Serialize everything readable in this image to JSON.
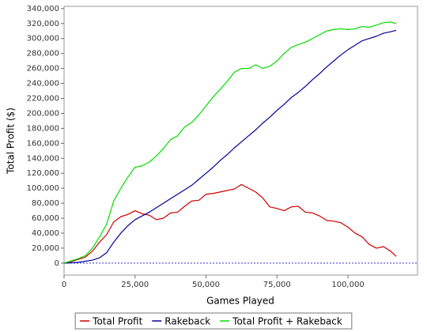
{
  "chart_data": {
    "type": "line",
    "x_label": "Games Played",
    "y_label": "Total Profit ($)",
    "x": [
      0,
      2500,
      5000,
      7500,
      10000,
      12500,
      15000,
      17500,
      20000,
      22500,
      25000,
      27500,
      30000,
      32500,
      35000,
      37500,
      40000,
      42500,
      45000,
      47500,
      50000,
      52500,
      55000,
      57500,
      60000,
      62500,
      65000,
      67500,
      70000,
      72500,
      75000,
      77500,
      80000,
      82500,
      85000,
      87500,
      90000,
      92500,
      95000,
      97500,
      100000,
      102500,
      105000,
      107500,
      110000,
      112500,
      115000,
      117000
    ],
    "series": [
      {
        "name": "Total Profit",
        "color": "#cc0000",
        "values": [
          0,
          2000,
          5000,
          8000,
          16000,
          28000,
          38000,
          55000,
          62000,
          65000,
          70000,
          66000,
          64000,
          58000,
          60000,
          67000,
          68000,
          76000,
          83000,
          84000,
          92000,
          93000,
          95000,
          97000,
          99000,
          105000,
          100000,
          95000,
          87000,
          75000,
          73000,
          70000,
          75000,
          76000,
          68000,
          67000,
          63000,
          57000,
          56000,
          54000,
          48000,
          40000,
          35000,
          25000,
          20000,
          22000,
          16000,
          9000
        ]
      },
      {
        "name": "Rakeback",
        "color": "#000099",
        "values": [
          0,
          500,
          1000,
          2500,
          4000,
          7000,
          14000,
          28000,
          40000,
          50000,
          58000,
          63000,
          68000,
          74000,
          80000,
          86000,
          92000,
          98000,
          104000,
          112000,
          120000,
          128000,
          137000,
          145000,
          154000,
          162000,
          170000,
          178000,
          187000,
          195000,
          204000,
          212000,
          221000,
          228000,
          236000,
          245000,
          253000,
          262000,
          270000,
          278000,
          285000,
          291000,
          297000,
          300000,
          303000,
          307000,
          309000,
          311000
        ]
      },
      {
        "name": "Total Profit + Rakeback",
        "color": "#00dd00",
        "values": [
          0,
          3000,
          6000,
          10000,
          20000,
          35000,
          52000,
          83000,
          100000,
          115000,
          128000,
          130000,
          135000,
          143000,
          153000,
          165000,
          170000,
          182000,
          188000,
          198000,
          210000,
          222000,
          232000,
          243000,
          255000,
          260000,
          260000,
          265000,
          260000,
          263000,
          270000,
          280000,
          288000,
          292000,
          295000,
          300000,
          305000,
          310000,
          312000,
          313000,
          312000,
          313000,
          316000,
          315000,
          318000,
          321000,
          322000,
          320000
        ]
      }
    ],
    "xlim": [
      0,
      124500
    ],
    "ylim": [
      -16000,
      343000
    ],
    "xticks": [
      0,
      {
        "value": 25000,
        "label": "25,000"
      },
      {
        "value": 50000,
        "label": "50,000"
      },
      {
        "value": 75000,
        "label": "75,000"
      },
      {
        "value": 100000,
        "label": "100,000"
      }
    ],
    "yticks": [
      0,
      {
        "value": 20000,
        "label": "20,000"
      },
      {
        "value": 40000,
        "label": "40,000"
      },
      {
        "value": 60000,
        "label": "60,000"
      },
      {
        "value": 80000,
        "label": "80,000"
      },
      {
        "value": 100000,
        "label": "100,000"
      },
      {
        "value": 120000,
        "label": "120,000"
      },
      {
        "value": 140000,
        "label": "140,000"
      },
      {
        "value": 160000,
        "label": "160,000"
      },
      {
        "value": 180000,
        "label": "180,000"
      },
      {
        "value": 200000,
        "label": "200,000"
      },
      {
        "value": 220000,
        "label": "220,000"
      },
      {
        "value": 240000,
        "label": "240,000"
      },
      {
        "value": 260000,
        "label": "260,000"
      },
      {
        "value": 280000,
        "label": "280,000"
      },
      {
        "value": 300000,
        "label": "300,000"
      },
      {
        "value": 320000,
        "label": "320,000"
      },
      {
        "value": 340000,
        "label": "340,000"
      }
    ],
    "grid": false,
    "zero_line": true,
    "legend": "bottom"
  }
}
